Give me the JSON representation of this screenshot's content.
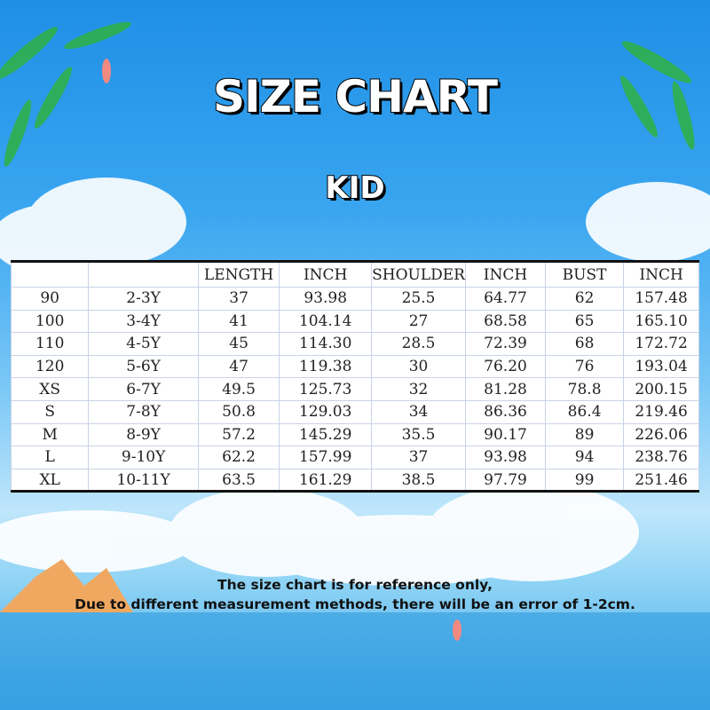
{
  "title": "SIZE CHART",
  "subtitle": "KID",
  "table": {
    "headers": [
      "",
      "",
      "LENGTH",
      "INCH",
      "SHOULDER",
      "INCH",
      "BUST",
      "INCH"
    ],
    "rows": [
      [
        "90",
        "2-3Y",
        "37",
        "93.98",
        "25.5",
        "64.77",
        "62",
        "157.48"
      ],
      [
        "100",
        "3-4Y",
        "41",
        "104.14",
        "27",
        "68.58",
        "65",
        "165.10"
      ],
      [
        "110",
        "4-5Y",
        "45",
        "114.30",
        "28.5",
        "72.39",
        "68",
        "172.72"
      ],
      [
        "120",
        "5-6Y",
        "47",
        "119.38",
        "30",
        "76.20",
        "76",
        "193.04"
      ],
      [
        "XS",
        "6-7Y",
        "49.5",
        "125.73",
        "32",
        "81.28",
        "78.8",
        "200.15"
      ],
      [
        "S",
        "7-8Y",
        "50.8",
        "129.03",
        "34",
        "86.36",
        "86.4",
        "219.46"
      ],
      [
        "M",
        "8-9Y",
        "57.2",
        "145.29",
        "35.5",
        "90.17",
        "89",
        "226.06"
      ],
      [
        "L",
        "9-10Y",
        "62.2",
        "157.99",
        "37",
        "93.98",
        "94",
        "238.76"
      ],
      [
        "XL",
        "10-11Y",
        "63.5",
        "161.29",
        "38.5",
        "97.79",
        "99",
        "251.46"
      ]
    ]
  },
  "note": [
    "The size chart is for reference only,",
    "Due to different measurement methods, there will be an error of 1-2cm."
  ]
}
